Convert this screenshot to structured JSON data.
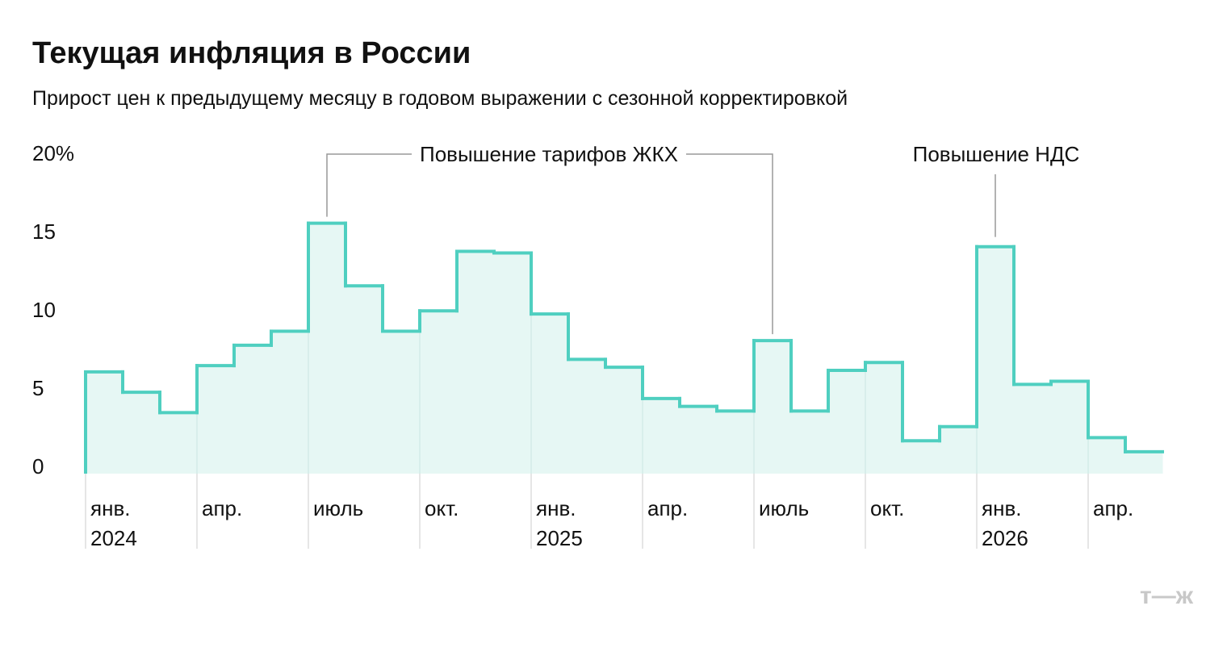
{
  "chart_data": {
    "type": "step",
    "title": "Текущая инфляция в России",
    "subtitle": "Прирост цен к предыдущему месяцу в годовом выражении с сезонной корректировкой",
    "categories": [
      "янв.",
      null,
      null,
      "апр.",
      null,
      null,
      "июль",
      null,
      null,
      "окт.",
      null,
      null,
      "янв.",
      null,
      null,
      "апр.",
      null,
      null,
      "июль",
      null,
      null,
      "окт.",
      null,
      null,
      "янв.",
      null,
      null,
      "апр.",
      null
    ],
    "year_labels": [
      "2024",
      null,
      null,
      null,
      null,
      null,
      null,
      null,
      null,
      null,
      null,
      null,
      "2025",
      null,
      null,
      null,
      null,
      null,
      null,
      null,
      null,
      null,
      null,
      null,
      "2026",
      null,
      null,
      null,
      null
    ],
    "values": [
      6.5,
      5.2,
      3.9,
      6.9,
      8.2,
      9.1,
      16.0,
      12.0,
      9.1,
      10.4,
      14.2,
      14.1,
      10.2,
      7.3,
      6.8,
      4.8,
      4.3,
      4.0,
      8.5,
      4.0,
      6.6,
      7.1,
      2.1,
      3.0,
      14.5,
      5.7,
      5.9,
      2.3,
      1.4
    ],
    "color": "#4fcfc0",
    "fill": "#e6f7f4",
    "ylim": [
      0,
      20
    ],
    "yticks": [
      0,
      5,
      10,
      15,
      {
        "value": 20,
        "label": "20%"
      }
    ],
    "annotations": [
      "Повышение тарифов ЖКХ",
      "Повышение НДС"
    ],
    "logo": "т—ж"
  }
}
